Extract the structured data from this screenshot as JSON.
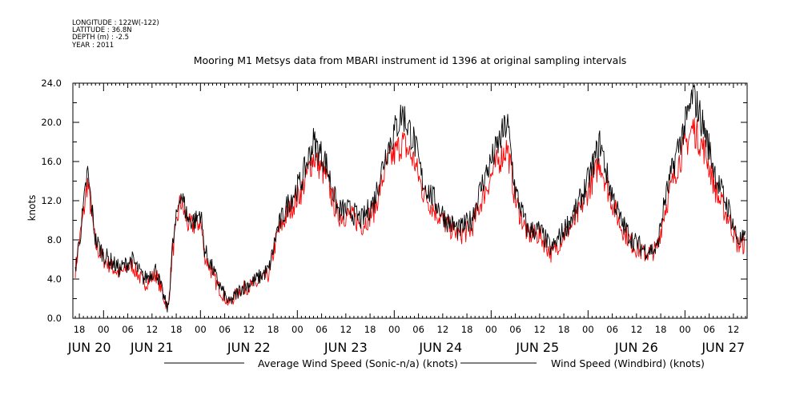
{
  "header": {
    "longitude": "LONGITUDE : 122W(-122)",
    "latitude": "LATITUDE : 36.8N",
    "depth": "DEPTH (m) : -2.5",
    "year": "YEAR : 2011"
  },
  "chart_data": {
    "type": "line",
    "title": "Mooring M1 Metsys data from MBARI instrument id 1396 at original sampling intervals",
    "ylabel": "knots",
    "xlabel": "",
    "ylim": [
      0,
      24
    ],
    "yticks": [
      "0.0",
      "4.0",
      "8.0",
      "12.0",
      "16.0",
      "20.0",
      "24.0"
    ],
    "x_units": "hours since JUN 20 00:00, 2011",
    "xlim": [
      16.4,
      183.4
    ],
    "hour_ticks": [
      18,
      24,
      30,
      36,
      42,
      48,
      54,
      60,
      66,
      72,
      78,
      84,
      90,
      96,
      102,
      108,
      114,
      120,
      126,
      132,
      138,
      144,
      150,
      156,
      162,
      168,
      174,
      180
    ],
    "hour_tick_labels": [
      "18",
      "00",
      "06",
      "12",
      "18",
      "00",
      "06",
      "12",
      "18",
      "00",
      "06",
      "12",
      "18",
      "00",
      "06",
      "12",
      "18",
      "00",
      "06",
      "12",
      "18",
      "00",
      "06",
      "12",
      "18",
      "00",
      "06",
      "12"
    ],
    "day_labels": [
      {
        "label": "JUN 20",
        "hour": 20.5
      },
      {
        "label": "JUN 21",
        "hour": 36
      },
      {
        "label": "JUN 22",
        "hour": 60
      },
      {
        "label": "JUN 23",
        "hour": 84
      },
      {
        "label": "JUN 24",
        "hour": 107.5
      },
      {
        "label": "JUN 25",
        "hour": 131.5
      },
      {
        "label": "JUN 26",
        "hour": 156
      },
      {
        "label": "JUN 27",
        "hour": 177.5
      }
    ],
    "x": [
      17,
      19,
      20,
      22,
      24,
      28,
      31,
      34,
      37,
      39,
      40,
      41,
      43,
      45,
      47,
      48,
      49,
      52,
      55,
      58,
      62,
      65,
      67,
      70,
      73,
      76,
      79,
      82,
      85,
      88,
      91,
      94,
      98,
      101,
      103,
      106,
      109,
      112,
      115,
      118,
      121,
      124,
      126,
      129,
      132,
      135,
      138,
      141,
      144,
      147,
      149,
      152,
      155,
      158,
      161,
      163,
      166,
      169,
      170,
      173,
      176,
      179,
      181,
      183
    ],
    "series": [
      {
        "name": "Average Wind Speed (Sonic-n/a) (knots)",
        "color": "#000000",
        "values": [
          5,
          11,
          15,
          8,
          6.5,
          5,
          6,
          4,
          5,
          2,
          0.8,
          7,
          13,
          10,
          10,
          11,
          7,
          4,
          1.5,
          3,
          4,
          5,
          9,
          12,
          14,
          18,
          16,
          11,
          11,
          10,
          12,
          17,
          21,
          18,
          14,
          12,
          10,
          9,
          10,
          14,
          17,
          20,
          13,
          9,
          9,
          7,
          9,
          11,
          14,
          18,
          14,
          10,
          8,
          7,
          7,
          12,
          17,
          21,
          23,
          19,
          14,
          11,
          8,
          8
        ]
      },
      {
        "name": "Wind Speed (Windbird) (knots)",
        "color": "#ff0000",
        "values": [
          5,
          10.5,
          14,
          7.5,
          6,
          4.5,
          5.5,
          3.5,
          4.5,
          2,
          1,
          6.5,
          12,
          9.5,
          9.5,
          10,
          6.5,
          3.5,
          1.5,
          3,
          3.5,
          4.5,
          8.5,
          11,
          13,
          16.5,
          14.5,
          10.5,
          10.5,
          9.5,
          11,
          15.5,
          18,
          16,
          13,
          11,
          9.5,
          8.5,
          9,
          12.5,
          15.5,
          17.5,
          12,
          8.5,
          8.5,
          6.5,
          8.5,
          10,
          13,
          16,
          13,
          9.5,
          7.5,
          6.5,
          7,
          11,
          15.5,
          18.5,
          19.5,
          17,
          12.5,
          10,
          7.5,
          7.5
        ]
      }
    ],
    "legend": [
      {
        "label": "Average Wind Speed (Sonic-n/a) (knots)",
        "color": "#000000"
      },
      {
        "label": "Wind Speed (Windbird) (knots)",
        "color": "#ff0000"
      }
    ],
    "legend_placement": "bottom",
    "grid": false
  }
}
